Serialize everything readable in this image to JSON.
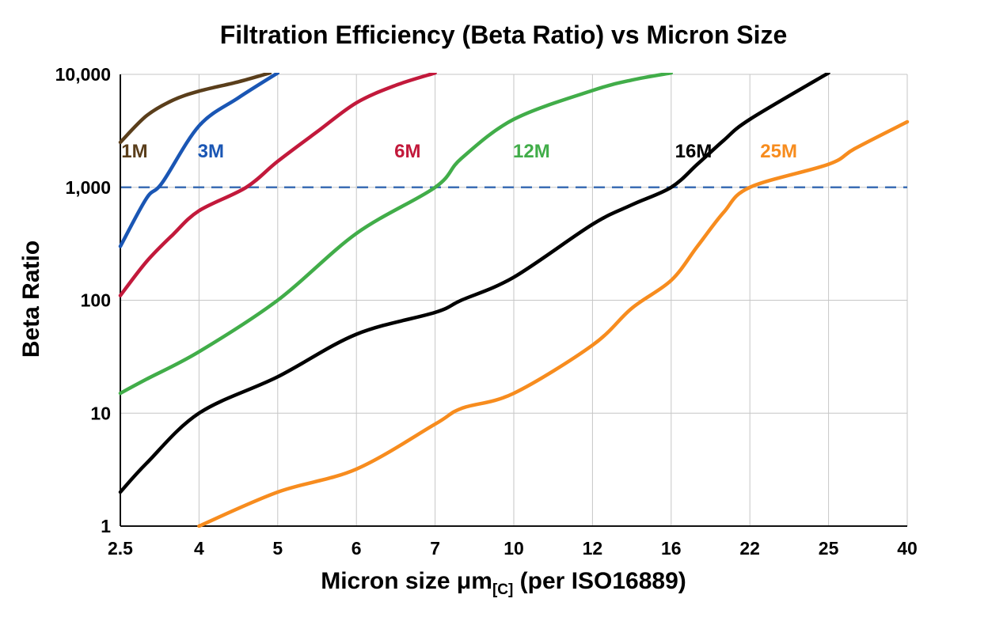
{
  "chart_data": {
    "type": "line",
    "title": "Filtration Efficiency (Beta Ratio) vs Micron Size",
    "ylabel": "Beta Ratio",
    "xlabel_main": "Micron size μm",
    "xlabel_sub": "[C]",
    "xlabel_suffix": " (per ISO16889)",
    "x_scale": "ordinal-ticks",
    "x_ticks": [
      2.5,
      4,
      5,
      6,
      7,
      10,
      12,
      16,
      22,
      25,
      40
    ],
    "x_tick_labels": [
      "2.5",
      "4",
      "5",
      "6",
      "7",
      "10",
      "12",
      "16",
      "22",
      "25",
      "40"
    ],
    "y_scale": "log",
    "ylim": [
      1,
      10000
    ],
    "y_ticks": [
      1,
      10,
      100,
      1000,
      10000
    ],
    "y_tick_labels": [
      "1",
      "10",
      "100",
      "1,000",
      "10,000"
    ],
    "grid": true,
    "legend_position": "inline-labels",
    "reference_line": {
      "value": 1000,
      "color": "#3c6eb4",
      "style": "dashed"
    },
    "series": [
      {
        "name": "1M",
        "color": "#5a3e1b",
        "label_at": [
          2.77,
          2100
        ],
        "points": [
          [
            2.5,
            2500
          ],
          [
            3,
            4300
          ],
          [
            3.5,
            5900
          ],
          [
            4,
            7100
          ],
          [
            4.5,
            8600
          ],
          [
            4.9,
            10300
          ]
        ]
      },
      {
        "name": "3M",
        "color": "#1a56b4",
        "label_at": [
          4.15,
          2100
        ],
        "points": [
          [
            2.5,
            300
          ],
          [
            3,
            800
          ],
          [
            3.3,
            1100
          ],
          [
            4,
            3500
          ],
          [
            4.5,
            6200
          ],
          [
            5,
            10300
          ]
        ]
      },
      {
        "name": "6M",
        "color": "#c2193b",
        "label_at": [
          6.65,
          2100
        ],
        "points": [
          [
            2.5,
            110
          ],
          [
            3,
            220
          ],
          [
            3.5,
            380
          ],
          [
            4,
            620
          ],
          [
            4.6,
            1000
          ],
          [
            5,
            1700
          ],
          [
            5.5,
            3100
          ],
          [
            6,
            5600
          ],
          [
            6.5,
            8000
          ],
          [
            7,
            10300
          ]
        ]
      },
      {
        "name": "12M",
        "color": "#41ad49",
        "label_at": [
          10.45,
          2100
        ],
        "points": [
          [
            2.5,
            15
          ],
          [
            3,
            20
          ],
          [
            4,
            35
          ],
          [
            5,
            100
          ],
          [
            6,
            390
          ],
          [
            7,
            1000
          ],
          [
            8,
            1800
          ],
          [
            10,
            4000
          ],
          [
            12,
            7200
          ],
          [
            14,
            8900
          ],
          [
            16,
            10300
          ]
        ]
      },
      {
        "name": "16M",
        "color": "#000000",
        "label_at": [
          17.7,
          2100
        ],
        "points": [
          [
            2.5,
            2
          ],
          [
            3,
            3.6
          ],
          [
            4,
            10
          ],
          [
            5,
            21
          ],
          [
            6,
            50
          ],
          [
            7,
            78
          ],
          [
            8,
            100
          ],
          [
            10,
            160
          ],
          [
            12,
            470
          ],
          [
            14,
            700
          ],
          [
            16,
            1000
          ],
          [
            18,
            1600
          ],
          [
            20,
            2600
          ],
          [
            22,
            4000
          ],
          [
            25,
            10300
          ]
        ]
      },
      {
        "name": "25M",
        "color": "#f78c1e",
        "label_at": [
          23.1,
          2100
        ],
        "points": [
          [
            4,
            1
          ],
          [
            5,
            2
          ],
          [
            6,
            3.2
          ],
          [
            7,
            8
          ],
          [
            8,
            11
          ],
          [
            10,
            15
          ],
          [
            12,
            40
          ],
          [
            14,
            85
          ],
          [
            16,
            150
          ],
          [
            18,
            300
          ],
          [
            20,
            600
          ],
          [
            22,
            1000
          ],
          [
            25,
            1600
          ],
          [
            30,
            2200
          ],
          [
            40,
            3800
          ]
        ]
      }
    ]
  }
}
